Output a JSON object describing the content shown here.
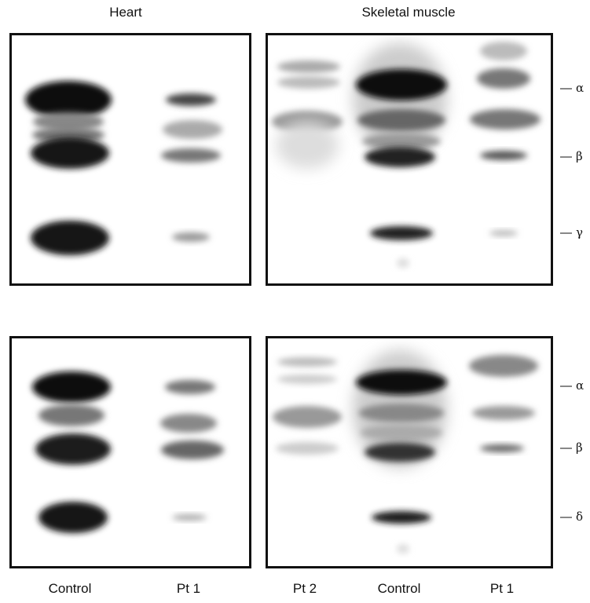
{
  "titles": {
    "heart": "Heart",
    "skeletal": "Skeletal muscle"
  },
  "markers": {
    "top": [
      "α",
      "β",
      "γ"
    ],
    "bottom": [
      "α",
      "β",
      "δ"
    ]
  },
  "lanes": {
    "heart": [
      "Control",
      "Pt 1"
    ],
    "skeletal": [
      "Pt 2",
      "Control",
      "Pt 1"
    ]
  },
  "image": "western blot autoradiograph, four panels with bands"
}
